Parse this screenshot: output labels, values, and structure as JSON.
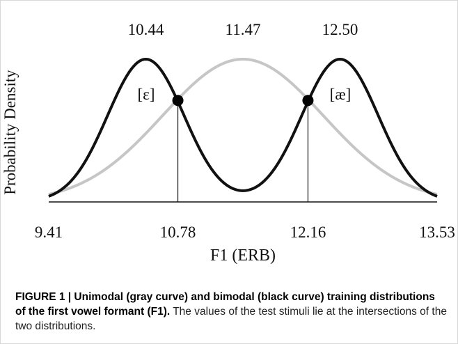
{
  "chart_data": {
    "type": "line",
    "xlabel": "F1 (ERB)",
    "ylabel": "Probability Density",
    "xlim": [
      9.41,
      13.53
    ],
    "xticks": [
      9.41,
      10.78,
      12.16,
      13.53
    ],
    "x2ticks": [
      10.44,
      11.47,
      12.5
    ],
    "x2tick_labels": [
      "10.44",
      "11.47",
      "12.50"
    ],
    "unimodal_color": "#c6c6c6",
    "bimodal_color": "#111111",
    "annotations": [
      "[ɛ]",
      "[æ]"
    ]
  },
  "caption": {
    "title": "FIGURE 1 | Unimodal (gray curve) and bimodal (black curve) training distributions of the first vowel formant (F1).",
    "text": "The values of the test stimuli lie at the intersections of the two distributions."
  }
}
